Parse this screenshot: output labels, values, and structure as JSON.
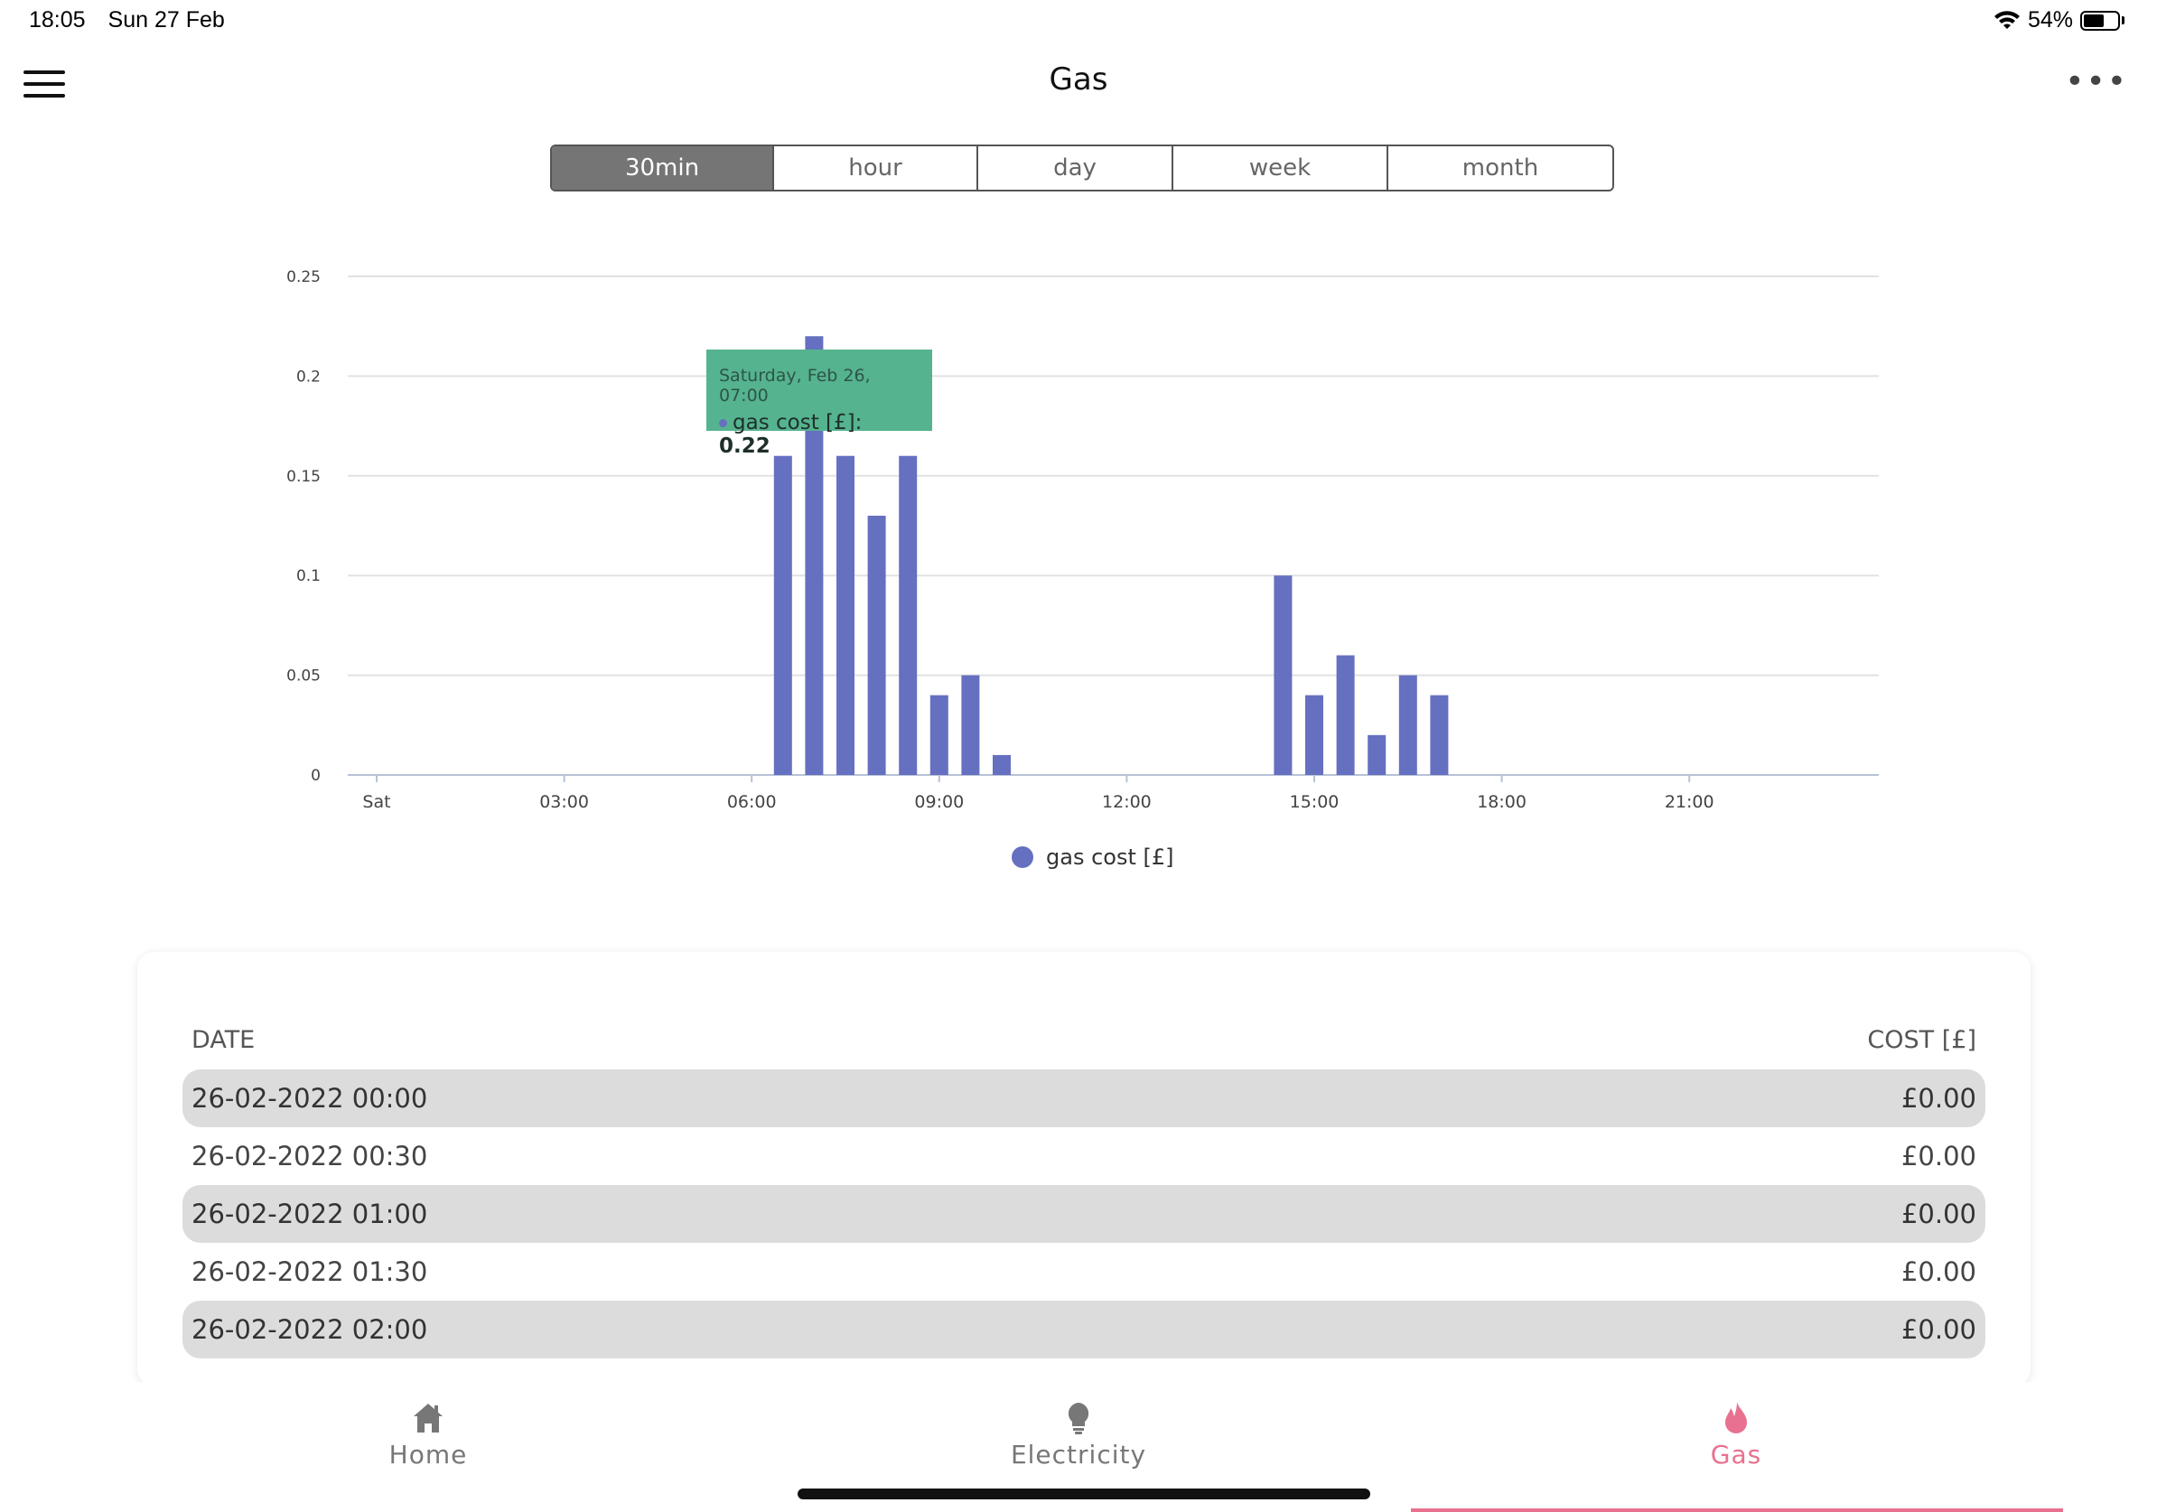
{
  "status": {
    "time": "18:05",
    "date": "Sun 27 Feb",
    "battery": "54%",
    "battery_level": 0.54
  },
  "header": {
    "title": "Gas"
  },
  "segments": [
    {
      "label": "30min",
      "active": true
    },
    {
      "label": "hour",
      "active": false
    },
    {
      "label": "day",
      "active": false
    },
    {
      "label": "week",
      "active": false
    },
    {
      "label": "month",
      "active": false
    }
  ],
  "chart_data": {
    "type": "bar",
    "series_name": "gas cost [£]",
    "color": "#6670c0",
    "ylim": [
      0,
      0.25
    ],
    "yticks": [
      "0",
      "0.05",
      "0.1",
      "0.15",
      "0.2",
      "0.25"
    ],
    "xticks": [
      "Sat",
      "03:00",
      "06:00",
      "09:00",
      "12:00",
      "15:00",
      "18:00",
      "21:00"
    ],
    "grid": true,
    "legend": "bottom-center",
    "bars": [
      {
        "time": "06:30",
        "value": 0.16
      },
      {
        "time": "07:00",
        "value": 0.22
      },
      {
        "time": "07:30",
        "value": 0.16
      },
      {
        "time": "08:00",
        "value": 0.13
      },
      {
        "time": "08:30",
        "value": 0.16
      },
      {
        "time": "09:00",
        "value": 0.04
      },
      {
        "time": "09:30",
        "value": 0.05
      },
      {
        "time": "10:00",
        "value": 0.01
      },
      {
        "time": "14:30",
        "value": 0.1
      },
      {
        "time": "15:00",
        "value": 0.04
      },
      {
        "time": "15:30",
        "value": 0.06
      },
      {
        "time": "16:00",
        "value": 0.02
      },
      {
        "time": "16:30",
        "value": 0.05
      },
      {
        "time": "17:00",
        "value": 0.04
      }
    ],
    "tooltip": {
      "date": "Saturday, Feb 26, 07:00",
      "label": "gas cost [£]: ",
      "value": "0.22"
    }
  },
  "table": {
    "header_date": "DATE",
    "header_cost": "COST [£]",
    "rows": [
      {
        "date": "26-02-2022 00:00",
        "cost": "£0.00"
      },
      {
        "date": "26-02-2022 00:30",
        "cost": "£0.00"
      },
      {
        "date": "26-02-2022 01:00",
        "cost": "£0.00"
      },
      {
        "date": "26-02-2022 01:30",
        "cost": "£0.00"
      },
      {
        "date": "26-02-2022 02:00",
        "cost": "£0.00"
      }
    ]
  },
  "tabs": [
    {
      "label": "Home",
      "icon": "home-icon"
    },
    {
      "label": "Electricity",
      "icon": "lightbulb-icon"
    },
    {
      "label": "Gas",
      "icon": "flame-icon",
      "active": true
    }
  ]
}
